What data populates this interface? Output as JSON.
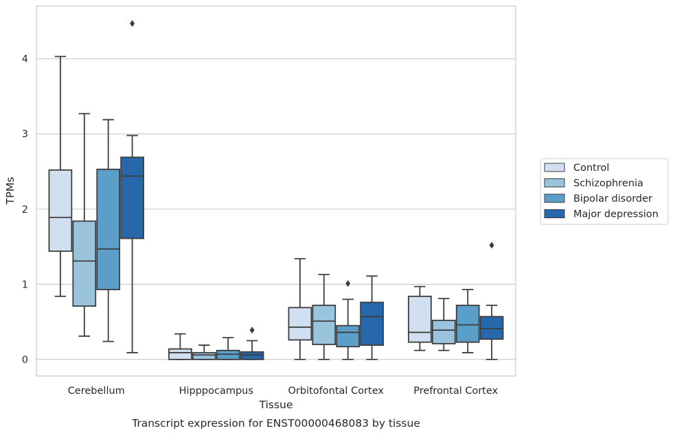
{
  "caption": "Transcript expression for ENST00000468083 by tissue",
  "chart_data": {
    "type": "boxplot",
    "title": "",
    "xlabel": "Tissue",
    "ylabel": "TPMs",
    "ylim": [
      -0.22,
      4.7
    ],
    "yticks": [
      0,
      1,
      2,
      3,
      4
    ],
    "grid": "horizontal",
    "legend_position": "right",
    "categories": [
      "Cerebellum",
      "Hipppocampus",
      "Orbitofontal Cortex",
      "Prefrontal Cortex"
    ],
    "series": [
      {
        "name": "Control",
        "color": "#d0e0f0",
        "boxes": [
          {
            "whisker_low": 0.84,
            "q1": 1.44,
            "median": 1.89,
            "q3": 2.52,
            "whisker_high": 4.03,
            "outliers": []
          },
          {
            "whisker_low": 0.0,
            "q1": 0.0,
            "median": 0.09,
            "q3": 0.14,
            "whisker_high": 0.34,
            "outliers": []
          },
          {
            "whisker_low": 0.0,
            "q1": 0.26,
            "median": 0.43,
            "q3": 0.69,
            "whisker_high": 1.34,
            "outliers": []
          },
          {
            "whisker_low": 0.12,
            "q1": 0.23,
            "median": 0.36,
            "q3": 0.84,
            "whisker_high": 0.97,
            "outliers": []
          }
        ]
      },
      {
        "name": "Schizophrenia",
        "color": "#9ac4de",
        "boxes": [
          {
            "whisker_low": 0.31,
            "q1": 0.71,
            "median": 1.31,
            "q3": 1.84,
            "whisker_high": 3.27,
            "outliers": []
          },
          {
            "whisker_low": 0.0,
            "q1": 0.0,
            "median": 0.06,
            "q3": 0.09,
            "whisker_high": 0.19,
            "outliers": []
          },
          {
            "whisker_low": 0.0,
            "q1": 0.2,
            "median": 0.51,
            "q3": 0.72,
            "whisker_high": 1.13,
            "outliers": []
          },
          {
            "whisker_low": 0.12,
            "q1": 0.21,
            "median": 0.39,
            "q3": 0.52,
            "whisker_high": 0.81,
            "outliers": []
          }
        ]
      },
      {
        "name": "Bipolar disorder",
        "color": "#5a9ec9",
        "boxes": [
          {
            "whisker_low": 0.24,
            "q1": 0.93,
            "median": 1.47,
            "q3": 2.53,
            "whisker_high": 3.19,
            "outliers": []
          },
          {
            "whisker_low": 0.0,
            "q1": 0.0,
            "median": 0.07,
            "q3": 0.12,
            "whisker_high": 0.29,
            "outliers": []
          },
          {
            "whisker_low": 0.0,
            "q1": 0.17,
            "median": 0.36,
            "q3": 0.45,
            "whisker_high": 0.8,
            "outliers": [
              1.01
            ]
          },
          {
            "whisker_low": 0.09,
            "q1": 0.23,
            "median": 0.46,
            "q3": 0.72,
            "whisker_high": 0.93,
            "outliers": []
          }
        ]
      },
      {
        "name": "Major depression",
        "color": "#2767ab",
        "boxes": [
          {
            "whisker_low": 0.09,
            "q1": 1.61,
            "median": 2.44,
            "q3": 2.69,
            "whisker_high": 2.98,
            "outliers": [
              4.47
            ]
          },
          {
            "whisker_low": 0.0,
            "q1": 0.0,
            "median": 0.06,
            "q3": 0.1,
            "whisker_high": 0.25,
            "outliers": [
              0.39
            ]
          },
          {
            "whisker_low": 0.0,
            "q1": 0.19,
            "median": 0.57,
            "q3": 0.76,
            "whisker_high": 1.11,
            "outliers": []
          },
          {
            "whisker_low": 0.0,
            "q1": 0.27,
            "median": 0.41,
            "q3": 0.57,
            "whisker_high": 0.72,
            "outliers": [
              1.52
            ]
          }
        ]
      }
    ]
  }
}
